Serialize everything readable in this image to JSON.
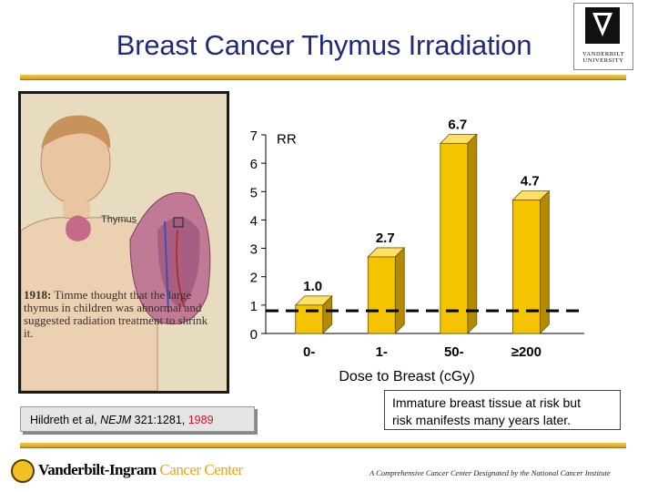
{
  "title": "Breast Cancer Thymus Irradiation",
  "logo": {
    "name_line1": "VANDERBILT",
    "name_line2": "UNIVERSITY"
  },
  "photo": {
    "thymus_label": "Thymus",
    "caption_year": "1918:",
    "caption_text": " Timme thought that the large thymus in children was abnormal and suggested radiation treatment to shrink it."
  },
  "citation": {
    "authors": "Hildreth et al, ",
    "journal": "NEJM",
    "ref": "  321:1281, ",
    "year": "1989"
  },
  "note": {
    "line1": "Immature breast tissue at risk but",
    "line2": "risk manifests many years later."
  },
  "footer": {
    "org": "Vanderbilt-Ingram",
    "org_suffix": "Cancer Center",
    "tagline": "A Comprehensive Cancer Center Designated by the National Cancer Institute"
  },
  "colors": {
    "bar": "#f5c400",
    "title": "#1f2a7a",
    "accent_red": "#d1122b"
  },
  "chart_data": {
    "type": "bar",
    "categories": [
      "0-",
      "1-",
      "50-",
      "≥200"
    ],
    "values": [
      1.0,
      2.7,
      6.7,
      4.7
    ],
    "value_labels": [
      "1.0",
      "2.7",
      "6.7",
      "4.7"
    ],
    "ylabel": "RR",
    "xlabel": "Dose to Breast (cGy)",
    "ylim": [
      0,
      7
    ],
    "yticks": [
      "0",
      "1",
      "2",
      "3",
      "4",
      "5",
      "6",
      "7"
    ],
    "reference_line": 0.8,
    "reference_style": "dashed",
    "grid": false
  }
}
